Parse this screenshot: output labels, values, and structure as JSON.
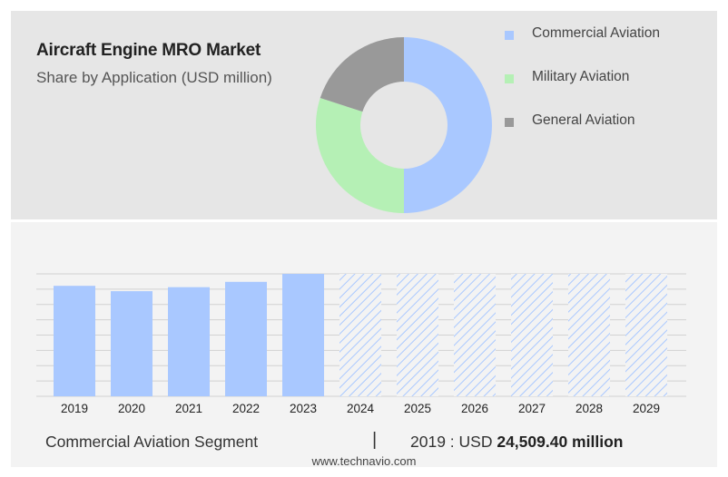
{
  "header": {
    "title": "Aircraft Engine MRO Market",
    "subtitle": "Share by Application (USD million)"
  },
  "colors": {
    "commercial": "#a9c8ff",
    "military": "#b5f0b5",
    "general": "#999999",
    "forecast_hatch": "#a9c8ff"
  },
  "chart_data": [
    {
      "type": "pie",
      "donut": true,
      "categories": [
        "Commercial Aviation",
        "Military Aviation",
        "General Aviation"
      ],
      "values": [
        50,
        30,
        20
      ],
      "legend_position": "right"
    },
    {
      "type": "bar",
      "categories": [
        "2019",
        "2020",
        "2021",
        "2022",
        "2023",
        "2024",
        "2025",
        "2026",
        "2027",
        "2028",
        "2029"
      ],
      "values": [
        83,
        79,
        82,
        86,
        92,
        92,
        92,
        92,
        92,
        92,
        92
      ],
      "forecast_from": "2024",
      "grid": true,
      "ylim": [
        0,
        92
      ]
    }
  ],
  "footer": {
    "segment": "Commercial Aviation Segment",
    "separator": "|",
    "value_prefix": "2019 : USD",
    "value_bold": "24,509.40 million",
    "source": "www.technavio.com"
  }
}
